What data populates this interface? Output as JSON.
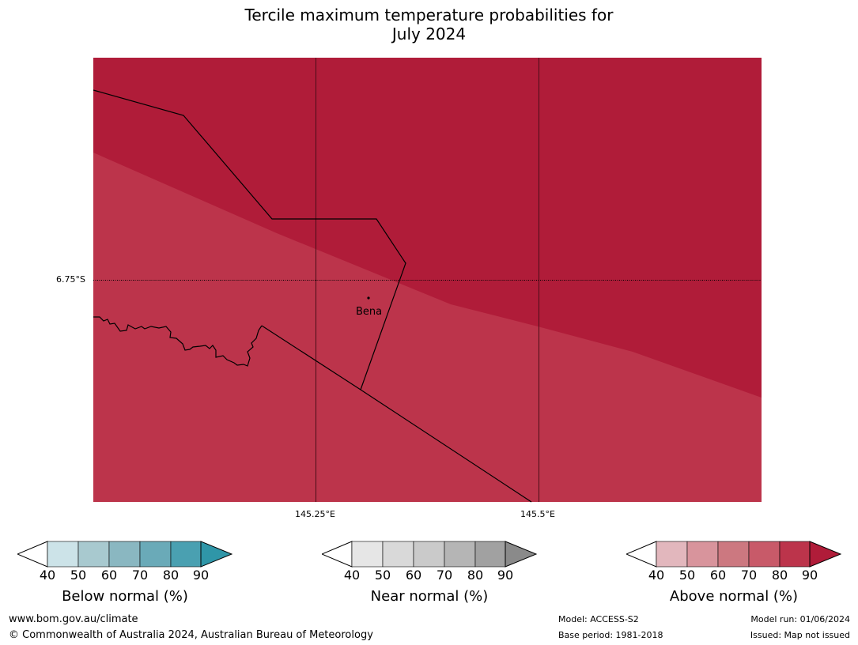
{
  "title_line1": "Tercile maximum temperature probabilities for",
  "title_line2": "July 2024",
  "map": {
    "lat_label": "6.75°S",
    "lon_labels": [
      "145.25°E",
      "145.5°E"
    ],
    "town": "Bena",
    "colors": {
      "above_90": "#b01c39",
      "above_80": "#bc344b"
    }
  },
  "legends": [
    {
      "title": "Below normal (%)",
      "ticks": [
        "40",
        "50",
        "60",
        "70",
        "80",
        "90"
      ],
      "colors": [
        "#cce3e8",
        "#a8c9cf",
        "#8ab7c1",
        "#6aaab8",
        "#4aa0b1",
        "#2f96a8"
      ]
    },
    {
      "title": "Near normal (%)",
      "ticks": [
        "40",
        "50",
        "60",
        "70",
        "80",
        "90"
      ],
      "colors": [
        "#e6e6e6",
        "#d9d9d9",
        "#cacaca",
        "#b5b5b5",
        "#a1a1a1",
        "#8a8a8a"
      ]
    },
    {
      "title": "Above normal (%)",
      "ticks": [
        "40",
        "50",
        "60",
        "70",
        "80",
        "90"
      ],
      "colors": [
        "#e2b7bd",
        "#d8949c",
        "#cc7880",
        "#c85a69",
        "#bc344b",
        "#b01c39"
      ]
    }
  ],
  "footer": {
    "url": "www.bom.gov.au/climate",
    "copyright": "© Commonwealth of Australia 2024, Australian Bureau of Meteorology",
    "model": "Model: ACCESS-S2",
    "base_period": "Base period: 1981-2018",
    "model_run": "Model run: 01/06/2024",
    "issued": "Issued: Map not issued"
  }
}
